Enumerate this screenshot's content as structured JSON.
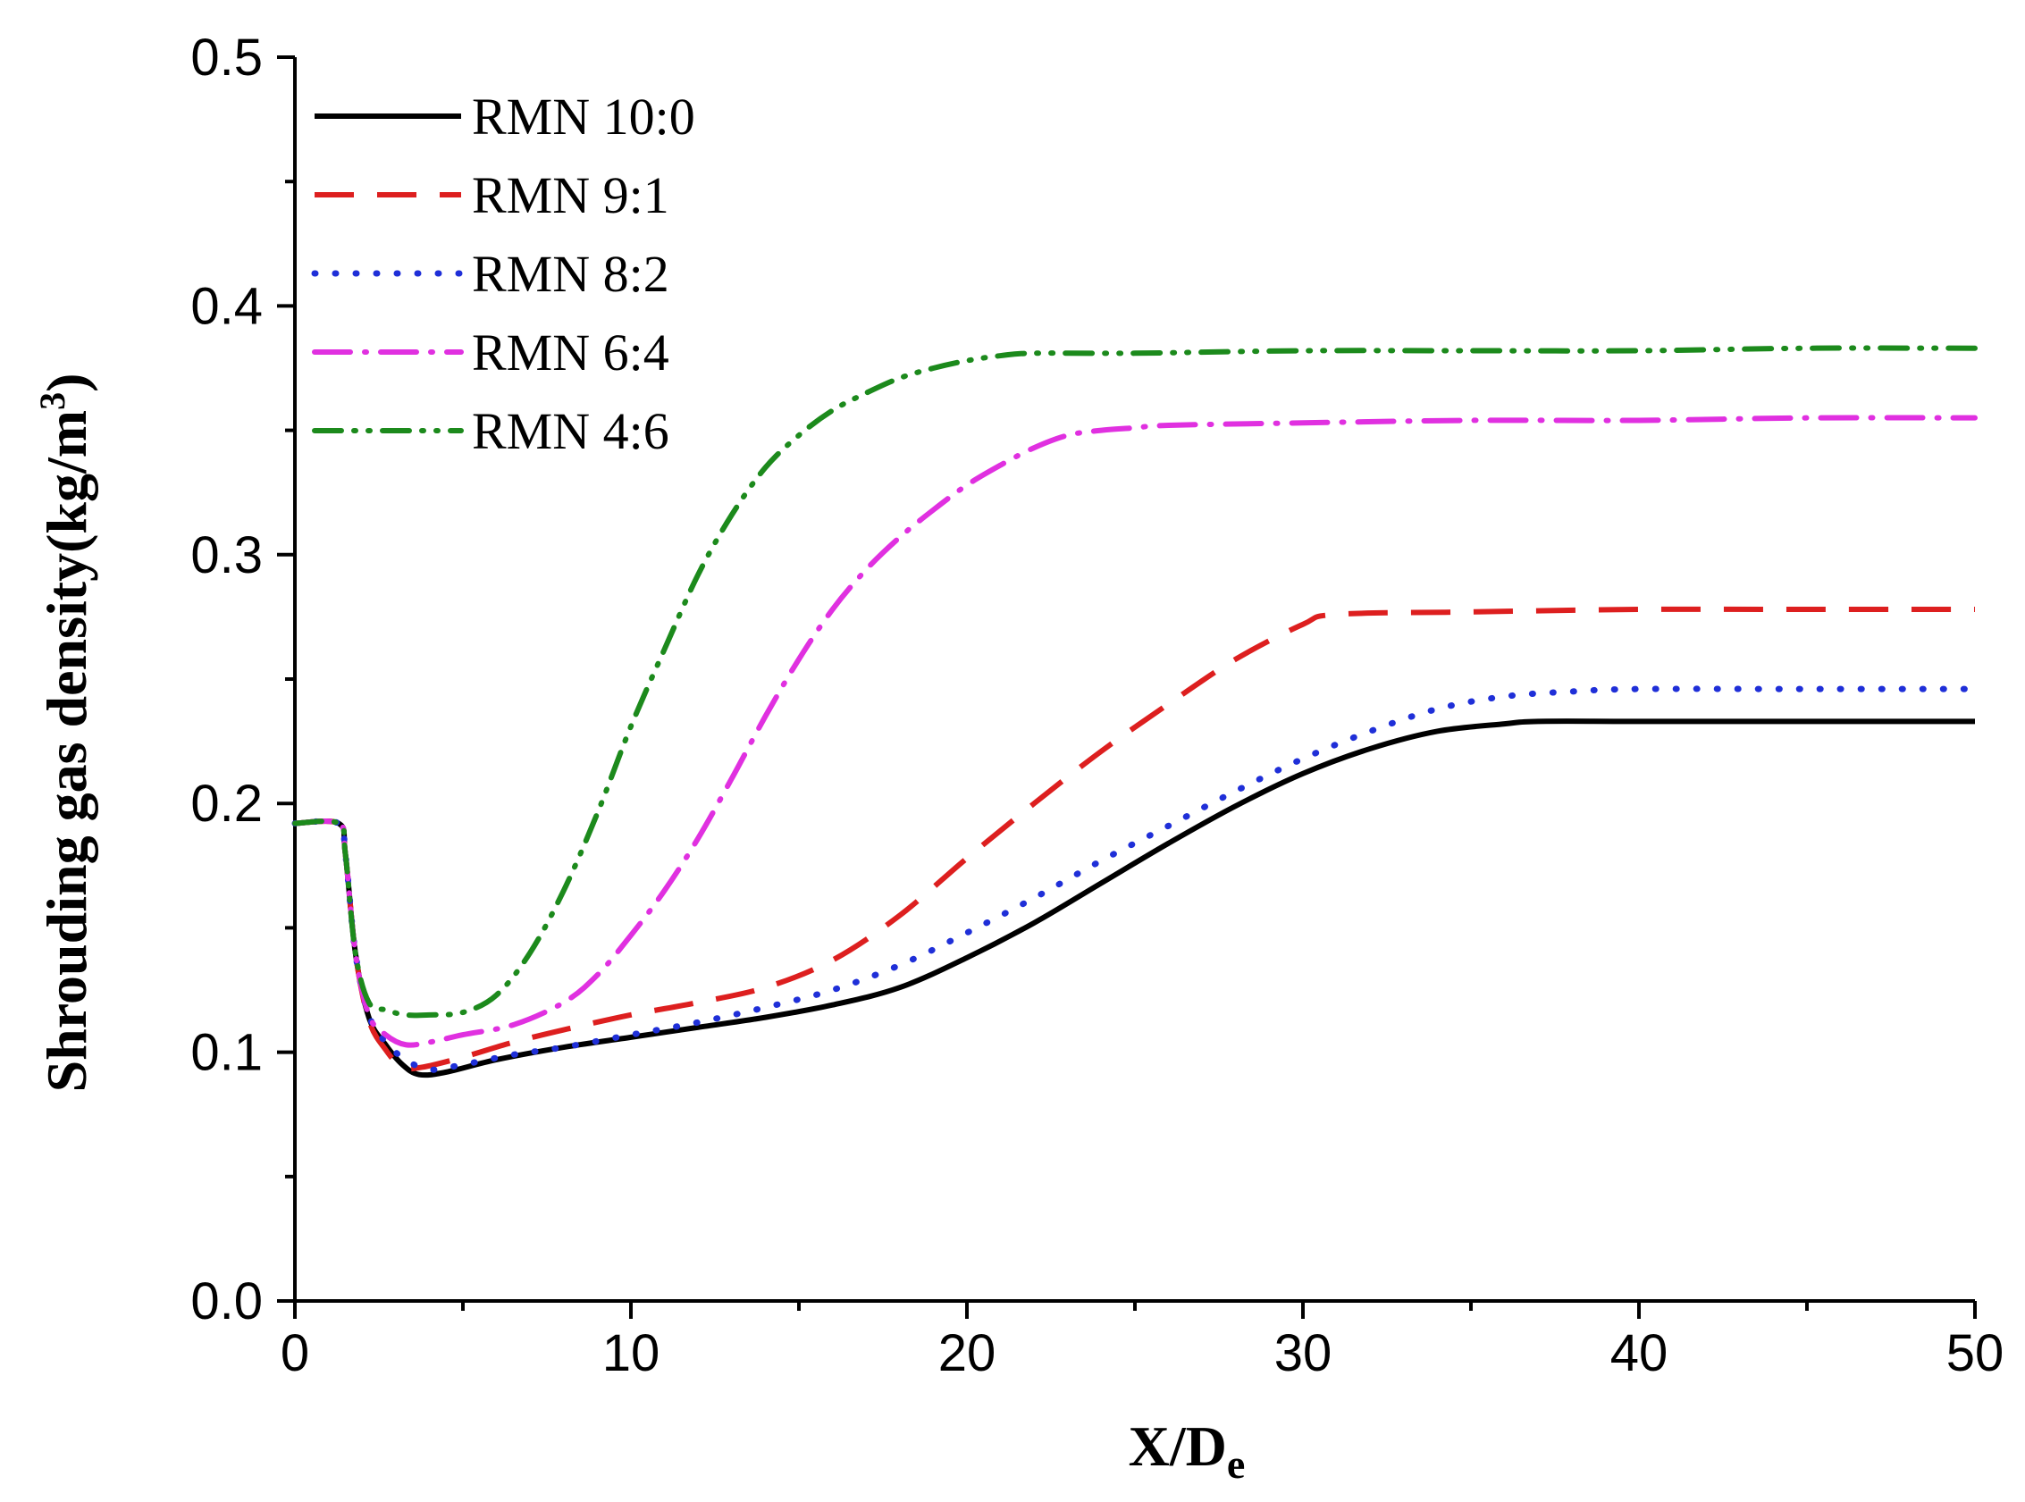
{
  "chart_data": {
    "type": "line",
    "title": "",
    "xlabel": "X/D",
    "xlabel_subscript": "e",
    "ylabel": "Shrouding gas density(kg/m",
    "ylabel_superscript": "3",
    "ylabel_close": ")",
    "xlim": [
      0,
      50
    ],
    "ylim": [
      0.0,
      0.5
    ],
    "xticks": [
      "0",
      "10",
      "20",
      "30",
      "40",
      "50"
    ],
    "yticks": [
      "0.0",
      "0.1",
      "0.2",
      "0.3",
      "0.4",
      "0.5"
    ],
    "legend_position": "top-left",
    "series": [
      {
        "name": "RMN 10:0",
        "color": "#000000",
        "dash": "solid",
        "x": [
          0,
          1.3,
          1.5,
          1.8,
          2.2,
          2.7,
          3.2,
          3.7,
          4.5,
          6,
          8,
          10,
          12,
          14,
          16,
          18,
          20,
          22,
          24,
          26,
          28,
          30,
          32,
          34,
          36,
          37,
          40,
          45,
          50
        ],
        "y": [
          0.192,
          0.192,
          0.18,
          0.14,
          0.114,
          0.103,
          0.095,
          0.091,
          0.092,
          0.097,
          0.102,
          0.106,
          0.11,
          0.114,
          0.119,
          0.126,
          0.138,
          0.152,
          0.168,
          0.184,
          0.199,
          0.212,
          0.222,
          0.229,
          0.232,
          0.233,
          0.233,
          0.233,
          0.233
        ]
      },
      {
        "name": "RMN 9:1",
        "color": "#dd1f1f",
        "dash": "dashed",
        "x": [
          0,
          1.3,
          1.5,
          1.8,
          2.2,
          2.7,
          3.2,
          3.8,
          5,
          6.5,
          8,
          10,
          12,
          14,
          16,
          18,
          20,
          22,
          24,
          26,
          28,
          30,
          31,
          35,
          40,
          45,
          50
        ],
        "y": [
          0.192,
          0.192,
          0.18,
          0.14,
          0.113,
          0.101,
          0.094,
          0.094,
          0.098,
          0.104,
          0.109,
          0.115,
          0.12,
          0.126,
          0.137,
          0.155,
          0.178,
          0.2,
          0.221,
          0.24,
          0.258,
          0.272,
          0.276,
          0.277,
          0.278,
          0.278,
          0.278
        ]
      },
      {
        "name": "RMN 8:2",
        "color": "#1f2fd8",
        "dash": "dotted",
        "x": [
          0,
          1.3,
          1.5,
          1.8,
          2.2,
          2.7,
          3.3,
          4,
          5,
          6.5,
          8,
          10,
          12,
          14,
          16,
          18,
          20,
          22,
          24,
          26,
          28,
          30,
          32,
          34,
          36,
          38,
          40,
          45,
          50
        ],
        "y": [
          0.192,
          0.192,
          0.18,
          0.14,
          0.115,
          0.104,
          0.097,
          0.093,
          0.095,
          0.099,
          0.102,
          0.107,
          0.112,
          0.118,
          0.125,
          0.135,
          0.148,
          0.162,
          0.177,
          0.191,
          0.205,
          0.218,
          0.229,
          0.238,
          0.243,
          0.245,
          0.246,
          0.246,
          0.246
        ]
      },
      {
        "name": "RMN 6:4",
        "color": "#e030e0",
        "dash": "dashdot",
        "x": [
          0,
          1.3,
          1.5,
          1.8,
          2.2,
          2.7,
          3.3,
          4,
          5,
          6.5,
          8,
          9,
          10,
          11,
          12,
          13,
          14,
          15,
          16,
          17,
          18,
          19,
          20,
          21,
          22,
          23,
          24,
          25,
          26,
          30,
          35,
          40,
          45,
          50
        ],
        "y": [
          0.192,
          0.192,
          0.18,
          0.14,
          0.115,
          0.107,
          0.103,
          0.104,
          0.107,
          0.111,
          0.12,
          0.131,
          0.147,
          0.165,
          0.186,
          0.21,
          0.235,
          0.258,
          0.278,
          0.294,
          0.307,
          0.318,
          0.328,
          0.336,
          0.343,
          0.348,
          0.35,
          0.351,
          0.352,
          0.353,
          0.354,
          0.354,
          0.355,
          0.355
        ]
      },
      {
        "name": "RMN 4:6",
        "color": "#1c8a1c",
        "dash": "dashdotdot",
        "x": [
          0,
          1.3,
          1.5,
          1.8,
          2.2,
          2.7,
          3.3,
          4,
          5,
          6,
          7,
          8,
          9,
          10,
          11,
          12,
          13,
          14,
          15,
          16,
          17,
          18,
          19,
          20,
          21,
          22,
          25,
          30,
          35,
          40,
          45,
          50
        ],
        "y": [
          0.192,
          0.192,
          0.18,
          0.14,
          0.12,
          0.117,
          0.115,
          0.115,
          0.116,
          0.123,
          0.14,
          0.165,
          0.196,
          0.231,
          0.262,
          0.292,
          0.316,
          0.335,
          0.348,
          0.358,
          0.365,
          0.371,
          0.375,
          0.378,
          0.38,
          0.381,
          0.381,
          0.382,
          0.382,
          0.382,
          0.383,
          0.383
        ]
      }
    ]
  }
}
